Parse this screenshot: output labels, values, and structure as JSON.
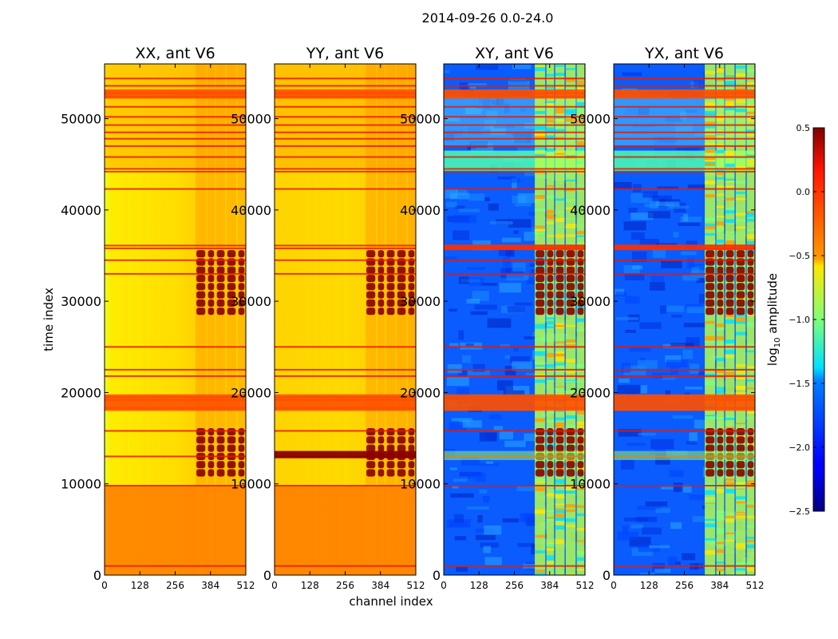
{
  "figure": {
    "suptitle": "2014-09-26 0.0-24.0"
  },
  "chart_data": {
    "type": "heatmap",
    "suptitle": "2014-09-26 0.0-24.0",
    "xlabel": "channel index",
    "ylabel": "time index",
    "xlim": [
      0,
      512
    ],
    "ylim": [
      0,
      56000
    ],
    "x_ticks": [
      0,
      128,
      256,
      384,
      512
    ],
    "y_ticks": [
      0,
      10000,
      20000,
      30000,
      40000,
      50000
    ],
    "panels": [
      {
        "title": "XX, ant V6",
        "product": "XX"
      },
      {
        "title": "YY, ant V6",
        "product": "YY"
      },
      {
        "title": "XY, ant V6",
        "product": "XY"
      },
      {
        "title": "YX, ant V6",
        "product": "YX"
      }
    ],
    "colorbar": {
      "label": "log₁₀ amplitude",
      "label_text": "log",
      "label_sub": "10",
      "label_rest": " amplitude",
      "range": [
        -2.5,
        0.5
      ],
      "ticks": [
        0.5,
        0.0,
        -0.5,
        -1.0,
        -1.5,
        -2.0,
        -2.5
      ],
      "tick_labels": [
        "0.5",
        "0.0",
        "−0.5",
        "−1.0",
        "−1.5",
        "−2.0",
        "−2.5"
      ],
      "colormap": "jet"
    },
    "approx_levels": {
      "XX_YY_background": -0.5,
      "XX_YY_low_time_band": 0.0,
      "XY_YX_background": -1.8,
      "strong_bands": 0.3
    }
  }
}
